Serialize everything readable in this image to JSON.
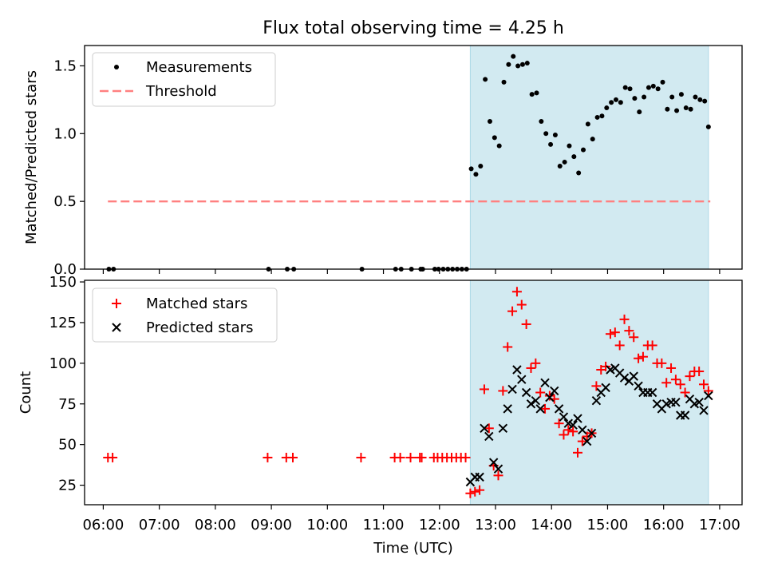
{
  "chart_data": [
    {
      "type": "scatter",
      "title": "Flux total observing time = 4.25 h",
      "xlabel": "",
      "ylabel": "Matched/Predicted stars",
      "ylim": [
        0,
        1.65
      ],
      "yticks": [
        0.0,
        0.5,
        1.0,
        1.5
      ],
      "ytick_labels": [
        "0.0",
        "0.5",
        "1.0",
        "1.5"
      ],
      "legend_position": "top-left",
      "highlight": {
        "start": "12:33",
        "end": "16:48",
        "color": "#add8e6"
      },
      "series": [
        {
          "name": "Measurements",
          "marker": "dot",
          "color": "#000000",
          "x": [
            "06:06",
            "06:11",
            "08:57",
            "09:17",
            "09:24",
            "10:37",
            "11:13",
            "11:19",
            "11:30",
            "11:40",
            "11:42",
            "11:55",
            "11:59",
            "12:04",
            "12:09",
            "12:14",
            "12:19",
            "12:24",
            "12:29",
            "12:34",
            "12:39",
            "12:44",
            "12:49",
            "12:54",
            "12:59",
            "13:04",
            "13:09",
            "13:14",
            "13:19",
            "13:24",
            "13:29",
            "13:34",
            "13:39",
            "13:44",
            "13:49",
            "13:54",
            "13:59",
            "14:04",
            "14:09",
            "14:14",
            "14:19",
            "14:24",
            "14:29",
            "14:34",
            "14:39",
            "14:44",
            "14:49",
            "14:54",
            "14:59",
            "15:04",
            "15:09",
            "15:14",
            "15:19",
            "15:24",
            "15:29",
            "15:34",
            "15:39",
            "15:44",
            "15:49",
            "15:54",
            "15:59",
            "16:04",
            "16:09",
            "16:14",
            "16:19",
            "16:24",
            "16:29",
            "16:34",
            "16:39",
            "16:44",
            "16:48"
          ],
          "y": [
            0,
            0,
            0,
            0,
            0,
            0,
            0,
            0,
            0,
            0,
            0,
            0,
            0,
            0,
            0,
            0,
            0,
            0,
            0,
            0.74,
            0.7,
            0.76,
            1.4,
            1.09,
            0.97,
            0.91,
            1.38,
            1.51,
            1.57,
            1.5,
            1.51,
            1.52,
            1.29,
            1.3,
            1.09,
            1.0,
            0.92,
            0.99,
            0.76,
            0.79,
            0.91,
            0.83,
            0.71,
            0.88,
            1.07,
            0.96,
            1.12,
            1.13,
            1.19,
            1.23,
            1.25,
            1.23,
            1.34,
            1.33,
            1.26,
            1.16,
            1.27,
            1.34,
            1.35,
            1.33,
            1.38,
            1.18,
            1.27,
            1.17,
            1.29,
            1.19,
            1.18,
            1.27,
            1.25,
            1.24,
            1.05
          ]
        },
        {
          "name": "Threshold",
          "type": "line",
          "style": "dashed",
          "color": "#ff8080",
          "x": [
            "06:05",
            "16:50"
          ],
          "y": [
            0.5,
            0.5
          ]
        }
      ]
    },
    {
      "type": "scatter",
      "title": "",
      "xlabel": "Time (UTC)",
      "ylabel": "Count",
      "ylim": [
        13,
        151
      ],
      "yticks": [
        25,
        50,
        75,
        100,
        125,
        150
      ],
      "ytick_labels": [
        "25",
        "50",
        "75",
        "100",
        "125",
        "150"
      ],
      "xticks": [
        "06:00",
        "07:00",
        "08:00",
        "09:00",
        "10:00",
        "11:00",
        "12:00",
        "13:00",
        "14:00",
        "15:00",
        "16:00",
        "17:00"
      ],
      "legend_position": "top-left",
      "highlight": {
        "start": "12:33",
        "end": "16:48",
        "color": "#add8e6"
      },
      "series": [
        {
          "name": "Matched stars",
          "marker": "plus",
          "color": "#ff0000",
          "x": [
            "06:05",
            "06:10",
            "08:56",
            "09:16",
            "09:23",
            "10:36",
            "11:12",
            "11:18",
            "11:29",
            "11:39",
            "11:41",
            "11:54",
            "11:58",
            "12:03",
            "12:08",
            "12:13",
            "12:18",
            "12:23",
            "12:28",
            "12:33",
            "12:38",
            "12:43",
            "12:48",
            "12:53",
            "12:58",
            "13:03",
            "13:08",
            "13:13",
            "13:18",
            "13:23",
            "13:28",
            "13:33",
            "13:38",
            "13:43",
            "13:48",
            "13:53",
            "13:58",
            "14:03",
            "14:08",
            "14:13",
            "14:18",
            "14:23",
            "14:28",
            "14:33",
            "14:38",
            "14:43",
            "14:48",
            "14:53",
            "14:58",
            "15:03",
            "15:08",
            "15:13",
            "15:18",
            "15:23",
            "15:28",
            "15:33",
            "15:38",
            "15:43",
            "15:48",
            "15:53",
            "15:58",
            "16:03",
            "16:08",
            "16:13",
            "16:18",
            "16:23",
            "16:28",
            "16:33",
            "16:38",
            "16:43",
            "16:48"
          ],
          "y": [
            42,
            42,
            42,
            42,
            42,
            42,
            42,
            42,
            42,
            42,
            42,
            42,
            42,
            42,
            42,
            42,
            42,
            42,
            42,
            20,
            21,
            22,
            84,
            60,
            37,
            31,
            83,
            110,
            132,
            144,
            136,
            124,
            97,
            100,
            82,
            72,
            80,
            78,
            63,
            56,
            59,
            58,
            45,
            52,
            55,
            57,
            86,
            96,
            98,
            118,
            119,
            111,
            127,
            120,
            116,
            103,
            104,
            111,
            111,
            100,
            100,
            88,
            97,
            90,
            87,
            82,
            92,
            95,
            95,
            87,
            83
          ]
        },
        {
          "name": "Predicted stars",
          "marker": "x",
          "color": "#000000",
          "x": [
            "12:33",
            "12:38",
            "12:43",
            "12:48",
            "12:53",
            "12:58",
            "13:03",
            "13:08",
            "13:13",
            "13:18",
            "13:23",
            "13:28",
            "13:33",
            "13:38",
            "13:43",
            "13:48",
            "13:53",
            "13:58",
            "14:03",
            "14:08",
            "14:13",
            "14:18",
            "14:23",
            "14:28",
            "14:33",
            "14:38",
            "14:43",
            "14:48",
            "14:53",
            "14:58",
            "15:03",
            "15:08",
            "15:13",
            "15:18",
            "15:23",
            "15:28",
            "15:33",
            "15:38",
            "15:43",
            "15:48",
            "15:53",
            "15:58",
            "16:03",
            "16:08",
            "16:13",
            "16:18",
            "16:23",
            "16:28",
            "16:33",
            "16:38",
            "16:43",
            "16:48"
          ],
          "y": [
            27,
            30,
            30,
            60,
            55,
            39,
            35,
            60,
            72,
            84,
            96,
            90,
            82,
            75,
            77,
            72,
            88,
            79,
            83,
            72,
            67,
            63,
            62,
            66,
            59,
            52,
            57,
            77,
            82,
            85,
            96,
            97,
            94,
            91,
            89,
            92,
            86,
            82,
            82,
            82,
            75,
            72,
            75,
            76,
            76,
            68,
            68,
            78,
            75,
            76,
            71,
            80
          ]
        }
      ]
    }
  ]
}
